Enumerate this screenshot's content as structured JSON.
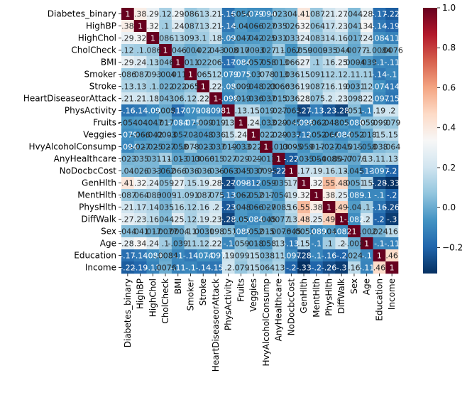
{
  "chart_data": {
    "type": "heatmap",
    "title": "",
    "xlabel": "",
    "ylabel": "",
    "labels": [
      "Diabetes_binary",
      "HighBP",
      "HighChol",
      "CholCheck",
      "BMI",
      "Smoker",
      "Stroke",
      "HeartDiseaseorAttack",
      "PhysActivity",
      "Fruits",
      "Veggies",
      "HvyAlcoholConsump",
      "AnyHealthcare",
      "NoDocbcCost",
      "GenHlth",
      "MentHlth",
      "PhysHlth",
      "DiffWalk",
      "Sex",
      "Age",
      "Education",
      "Income"
    ],
    "matrix": [
      [
        1,
        0.38,
        0.29,
        0.12,
        0.29,
        0.086,
        0.13,
        0.21,
        -0.16,
        -0.054,
        -0.079,
        -0.094,
        0.023,
        0.04,
        0.41,
        0.087,
        0.21,
        0.27,
        0.044,
        0.28,
        -0.17,
        -0.22
      ],
      [
        0.38,
        1,
        0.32,
        0.1,
        0.24,
        0.087,
        0.13,
        0.21,
        -0.14,
        -0.04,
        -0.066,
        -0.027,
        0.035,
        0.026,
        0.32,
        0.064,
        0.17,
        0.23,
        0.041,
        0.34,
        -0.14,
        -0.19
      ],
      [
        0.29,
        0.32,
        1,
        0.086,
        0.13,
        0.093,
        0.1,
        0.18,
        -0.09,
        -0.047,
        -0.042,
        -0.025,
        0.031,
        0.033,
        0.24,
        0.083,
        0.14,
        0.16,
        0.017,
        0.24,
        -0.084,
        -0.11
      ],
      [
        0.12,
        0.1,
        0.086,
        1,
        0.046,
        -0.004,
        0.022,
        0.043,
        -0.008,
        0.017,
        0.0003,
        -0.027,
        0.11,
        -0.062,
        0.059,
        0.0009,
        0.035,
        0.044,
        -0.0077,
        0.1,
        -0.0084,
        0.0076
      ],
      [
        0.29,
        0.24,
        0.13,
        0.046,
        1,
        0.011,
        0.022,
        0.06,
        -0.17,
        -0.084,
        -0.057,
        -0.058,
        -0.013,
        0.066,
        0.27,
        0.1,
        0.16,
        0.25,
        0.0004,
        -0.039,
        -0.1,
        -0.11
      ],
      [
        0.086,
        0.087,
        0.093,
        -0.004,
        0.011,
        1,
        0.065,
        0.12,
        -0.079,
        -0.075,
        -0.03,
        0.078,
        -0.013,
        0.036,
        0.15,
        0.091,
        0.12,
        0.12,
        0.11,
        0.11,
        -0.14,
        -0.1
      ],
      [
        0.13,
        0.13,
        0.1,
        0.022,
        0.022,
        0.065,
        1,
        0.22,
        -0.08,
        -0.009,
        -0.048,
        -0.023,
        0.0066,
        0.036,
        0.19,
        0.087,
        0.16,
        0.19,
        0.0031,
        0.12,
        -0.074,
        -0.14
      ],
      [
        0.21,
        0.21,
        0.18,
        0.043,
        0.06,
        0.12,
        0.22,
        1,
        -0.098,
        -0.019,
        -0.036,
        -0.037,
        0.015,
        0.036,
        0.28,
        0.075,
        0.2,
        0.23,
        0.098,
        0.22,
        -0.097,
        -0.15
      ],
      [
        -0.16,
        -0.14,
        -0.09,
        -0.008,
        -0.17,
        -0.079,
        -0.08,
        -0.098,
        1,
        0.13,
        0.15,
        0.019,
        0.027,
        -0.063,
        -0.27,
        -0.13,
        -0.23,
        -0.28,
        0.051,
        -0.1,
        0.19,
        0.2
      ],
      [
        -0.054,
        -0.04,
        -0.047,
        0.017,
        -0.084,
        -0.075,
        -0.009,
        -0.019,
        0.13,
        1,
        0.24,
        -0.033,
        0.029,
        -0.045,
        -0.098,
        -0.062,
        -0.048,
        -0.05,
        -0.088,
        0.059,
        0.099,
        0.079
      ],
      [
        -0.079,
        -0.066,
        -0.042,
        0.0003,
        -0.057,
        -0.03,
        -0.048,
        -0.036,
        0.15,
        0.24,
        1,
        0.022,
        0.029,
        -0.037,
        -0.12,
        -0.052,
        -0.066,
        -0.084,
        -0.052,
        -0.018,
        0.15,
        0.15
      ],
      [
        -0.094,
        -0.027,
        -0.025,
        -0.027,
        -0.058,
        0.078,
        -0.023,
        -0.037,
        0.019,
        -0.033,
        0.022,
        1,
        -0.013,
        0.0095,
        -0.059,
        0.017,
        -0.027,
        -0.045,
        0.015,
        -0.058,
        0.038,
        0.064
      ],
      [
        0.023,
        0.035,
        0.031,
        0.11,
        -0.013,
        -0.013,
        0.0066,
        0.015,
        0.027,
        0.029,
        0.029,
        -0.013,
        1,
        -0.22,
        -0.035,
        -0.054,
        -0.0085,
        0.0077,
        -0.0076,
        0.13,
        0.11,
        0.13
      ],
      [
        0.04,
        0.026,
        0.033,
        -0.062,
        0.066,
        0.036,
        0.036,
        0.036,
        -0.063,
        -0.045,
        -0.037,
        0.0095,
        -0.22,
        1,
        0.17,
        0.19,
        0.16,
        0.13,
        -0.045,
        -0.13,
        -0.097,
        -0.2
      ],
      [
        0.41,
        0.32,
        0.24,
        0.059,
        0.27,
        0.15,
        0.19,
        0.28,
        -0.27,
        -0.098,
        -0.12,
        -0.059,
        -0.035,
        0.17,
        1,
        0.32,
        0.55,
        0.48,
        0.0051,
        0.15,
        -0.28,
        -0.33
      ],
      [
        0.087,
        0.064,
        0.083,
        0.0009,
        0.1,
        0.091,
        0.087,
        0.075,
        -0.13,
        -0.062,
        -0.052,
        0.017,
        -0.054,
        0.19,
        0.32,
        1,
        0.38,
        0.25,
        -0.089,
        -0.1,
        -0.1,
        -0.2
      ],
      [
        0.21,
        0.17,
        0.14,
        0.035,
        0.16,
        0.12,
        0.16,
        0.2,
        -0.23,
        -0.048,
        -0.066,
        -0.027,
        -0.0085,
        0.16,
        0.55,
        0.38,
        1,
        0.49,
        -0.04,
        0.1,
        -0.16,
        -0.26
      ],
      [
        0.27,
        0.23,
        0.16,
        0.044,
        0.25,
        0.12,
        0.19,
        0.23,
        -0.28,
        -0.05,
        -0.084,
        -0.045,
        0.0077,
        0.13,
        0.48,
        0.25,
        0.49,
        1,
        -0.082,
        0.2,
        -0.2,
        -0.3
      ],
      [
        0.044,
        0.041,
        0.017,
        -0.0077,
        0.0004,
        0.11,
        0.0031,
        0.098,
        0.051,
        -0.088,
        -0.052,
        0.015,
        -0.0076,
        -0.045,
        0.0051,
        -0.089,
        -0.04,
        -0.082,
        1,
        -0.002,
        0.024,
        0.16
      ],
      [
        0.28,
        0.34,
        0.24,
        0.1,
        -0.039,
        0.11,
        0.12,
        0.22,
        -0.1,
        0.059,
        -0.018,
        -0.058,
        0.13,
        -0.13,
        0.15,
        -0.1,
        0.1,
        0.2,
        -0.002,
        1,
        -0.1,
        -0.11
      ],
      [
        -0.17,
        -0.14,
        -0.084,
        -0.0084,
        -0.1,
        -0.14,
        -0.074,
        -0.097,
        0.19,
        0.099,
        0.15,
        0.038,
        0.11,
        -0.097,
        -0.28,
        -0.1,
        -0.16,
        -0.2,
        0.024,
        -0.1,
        1,
        0.46
      ],
      [
        -0.22,
        -0.19,
        -0.11,
        0.0076,
        -0.11,
        -0.1,
        -0.14,
        -0.15,
        0.2,
        0.079,
        0.15,
        0.064,
        0.13,
        -0.2,
        -0.33,
        -0.2,
        -0.26,
        -0.3,
        0.16,
        -0.11,
        0.46,
        1
      ]
    ],
    "colorbar": {
      "vmin": -0.33,
      "vmax": 1.0,
      "ticks": [
        -0.2,
        0.0,
        0.2,
        0.4,
        0.6,
        0.8,
        1.0
      ],
      "tick_labels": [
        "−0.2",
        "0.0",
        "0.2",
        "0.4",
        "0.6",
        "0.8",
        "1.0"
      ]
    },
    "colormap": "RdBu_r",
    "colormap_stops": [
      "#053061",
      "#2166ac",
      "#4393c3",
      "#92c5de",
      "#d1e5f0",
      "#f7f7f7",
      "#fddbc7",
      "#f4a582",
      "#d6604d",
      "#b2182b",
      "#67001f"
    ],
    "annotated": true,
    "grid": false
  }
}
